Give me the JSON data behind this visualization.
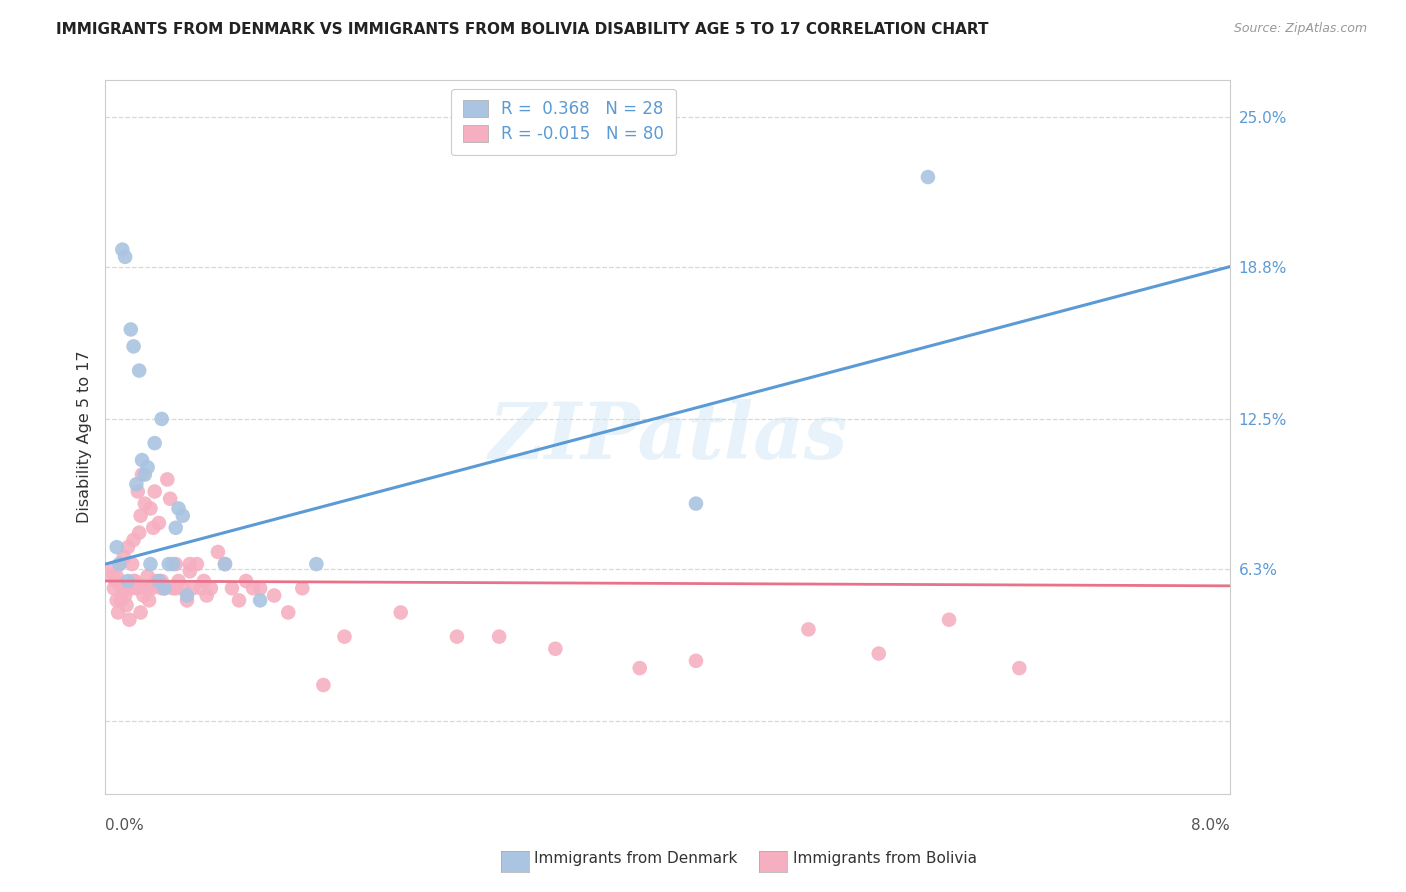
{
  "title": "IMMIGRANTS FROM DENMARK VS IMMIGRANTS FROM BOLIVIA DISABILITY AGE 5 TO 17 CORRELATION CHART",
  "source": "Source: ZipAtlas.com",
  "ylabel": "Disability Age 5 to 17",
  "right_ytick_vals": [
    0.0,
    6.3,
    12.5,
    18.8,
    25.0
  ],
  "right_ytick_labels": [
    "",
    "6.3%",
    "12.5%",
    "18.8%",
    "25.0%"
  ],
  "xmin": 0.0,
  "xmax": 8.0,
  "ymin": -3.0,
  "ymax": 26.5,
  "denmark_color": "#aac4e2",
  "bolivia_color": "#f5afc0",
  "denmark_line_color": "#5b9bd5",
  "bolivia_line_color": "#e8728a",
  "legend_denmark_r": "R =  0.368",
  "legend_denmark_n": "N = 28",
  "legend_bolivia_r": "R = -0.015",
  "legend_bolivia_n": "N = 80",
  "denmark_x": [
    0.08,
    0.1,
    0.12,
    0.14,
    0.16,
    0.18,
    0.2,
    0.22,
    0.24,
    0.26,
    0.28,
    0.3,
    0.32,
    0.35,
    0.38,
    0.4,
    0.42,
    0.45,
    0.48,
    0.5,
    0.52,
    0.55,
    0.58,
    0.85,
    1.1,
    1.5,
    4.2,
    5.85
  ],
  "denmark_y": [
    7.2,
    6.5,
    19.5,
    19.2,
    5.8,
    16.2,
    15.5,
    9.8,
    14.5,
    10.8,
    10.2,
    10.5,
    6.5,
    11.5,
    5.8,
    12.5,
    5.5,
    6.5,
    6.5,
    8.0,
    8.8,
    8.5,
    5.2,
    6.5,
    5.0,
    6.5,
    9.0,
    22.5
  ],
  "bolivia_x": [
    0.04,
    0.06,
    0.07,
    0.08,
    0.09,
    0.1,
    0.11,
    0.12,
    0.13,
    0.14,
    0.15,
    0.16,
    0.17,
    0.18,
    0.19,
    0.2,
    0.21,
    0.22,
    0.23,
    0.24,
    0.25,
    0.26,
    0.27,
    0.28,
    0.29,
    0.3,
    0.31,
    0.32,
    0.33,
    0.34,
    0.35,
    0.36,
    0.38,
    0.4,
    0.42,
    0.44,
    0.46,
    0.48,
    0.5,
    0.52,
    0.55,
    0.58,
    0.6,
    0.62,
    0.65,
    0.68,
    0.72,
    0.75,
    0.8,
    0.85,
    0.9,
    0.95,
    1.0,
    1.05,
    1.1,
    1.2,
    1.3,
    1.4,
    1.55,
    1.7,
    2.1,
    2.5,
    2.8,
    3.2,
    3.8,
    4.2,
    5.0,
    5.5,
    6.0,
    6.5,
    0.05,
    0.08,
    0.15,
    0.2,
    0.25,
    0.3,
    0.4,
    0.5,
    0.6,
    0.7
  ],
  "bolivia_y": [
    6.2,
    5.5,
    5.8,
    6.0,
    4.5,
    6.5,
    5.0,
    5.5,
    6.8,
    5.2,
    4.8,
    7.2,
    4.2,
    5.5,
    6.5,
    7.5,
    5.8,
    5.5,
    9.5,
    7.8,
    8.5,
    10.2,
    5.2,
    9.0,
    5.5,
    6.0,
    5.0,
    8.8,
    5.5,
    8.0,
    9.5,
    5.8,
    8.2,
    5.8,
    5.5,
    10.0,
    9.2,
    5.5,
    6.5,
    5.8,
    5.5,
    5.0,
    6.5,
    5.5,
    6.5,
    5.5,
    5.2,
    5.5,
    7.0,
    6.5,
    5.5,
    5.0,
    5.8,
    5.5,
    5.5,
    5.2,
    4.5,
    5.5,
    1.5,
    3.5,
    4.5,
    3.5,
    3.5,
    3.0,
    2.2,
    2.5,
    3.8,
    2.8,
    4.2,
    2.2,
    6.0,
    5.0,
    5.5,
    5.8,
    4.5,
    5.5,
    5.5,
    5.5,
    6.2,
    5.8
  ],
  "watermark": "ZIPatlas",
  "background_color": "#ffffff",
  "grid_color": "#d8d8d8",
  "denmark_trend_x0": 0.0,
  "denmark_trend_y0": 6.5,
  "denmark_trend_x1": 8.0,
  "denmark_trend_y1": 18.8,
  "bolivia_trend_x0": 0.0,
  "bolivia_trend_y0": 5.8,
  "bolivia_trend_x1": 8.0,
  "bolivia_trend_y1": 5.6
}
